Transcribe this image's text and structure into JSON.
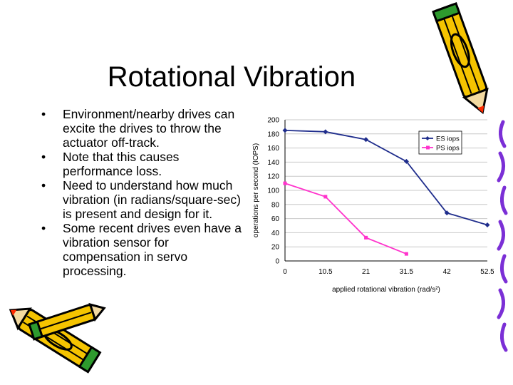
{
  "slide": {
    "title": "Rotational Vibration",
    "bullets": [
      "Environment/nearby drives can excite the drives to throw the actuator off-track.",
      "Note that this causes performance loss.",
      "Need to understand how much vibration (in radians/square-sec) is present and design for it.",
      "Some recent drives even have a vibration sensor for compensation in servo processing."
    ]
  },
  "chart_data": {
    "type": "line",
    "x": [
      "0",
      "10.5",
      "21",
      "31.5",
      "42",
      "52.5"
    ],
    "series": [
      {
        "name": "ES iops",
        "values": [
          185,
          183,
          172,
          141,
          68,
          51
        ],
        "color": "#1f2d8c",
        "marker": "diamond"
      },
      {
        "name": "PS iops",
        "values": [
          110,
          91,
          33,
          10,
          null,
          null
        ],
        "color": "#ff33cc",
        "marker": "square"
      }
    ],
    "xlabel": "applied rotational vibration (rad/s²)",
    "ylabel": "operations per second (IOPS)",
    "ylim": [
      0,
      200
    ],
    "yticks": [
      "0",
      "20",
      "40",
      "60",
      "80",
      "100",
      "120",
      "140",
      "160",
      "180",
      "200"
    ],
    "grid": true,
    "legend": "top-right"
  },
  "decoration": {
    "pencil_body": "#f5c400",
    "pencil_outline": "#000000",
    "pencil_tip": "#ff2a00",
    "pencil_green": "#2e9a2e",
    "border_squiggle": "#7b2fd6"
  }
}
